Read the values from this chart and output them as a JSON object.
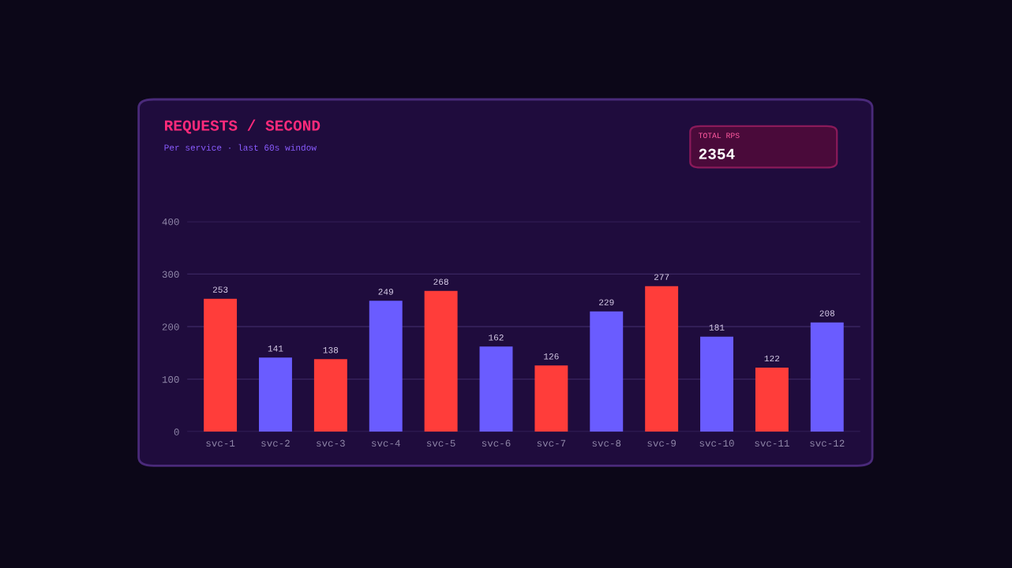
{
  "chart_data": {
    "type": "bar",
    "title": "REQUESTS / SECOND",
    "subtitle": "Per service · last 60s window",
    "categories": [
      "svc-1",
      "svc-2",
      "svc-3",
      "svc-4",
      "svc-5",
      "svc-6",
      "svc-7",
      "svc-8",
      "svc-9",
      "svc-10",
      "svc-11",
      "svc-12"
    ],
    "values": [
      253,
      141,
      138,
      249,
      268,
      162,
      126,
      229,
      277,
      181,
      122,
      208
    ],
    "colors": [
      "#ff3d3a",
      "#6a5cff",
      "#ff3d3a",
      "#6a5cff",
      "#ff3d3a",
      "#6a5cff",
      "#ff3d3a",
      "#6a5cff",
      "#ff3d3a",
      "#6a5cff",
      "#ff3d3a",
      "#6a5cff"
    ],
    "ylim": [
      0,
      400
    ],
    "yticks": [
      0,
      100,
      200,
      300,
      400
    ],
    "grid": "y",
    "data_labels": true,
    "annotations": [
      "TOTAL RPS",
      "2354"
    ]
  }
}
